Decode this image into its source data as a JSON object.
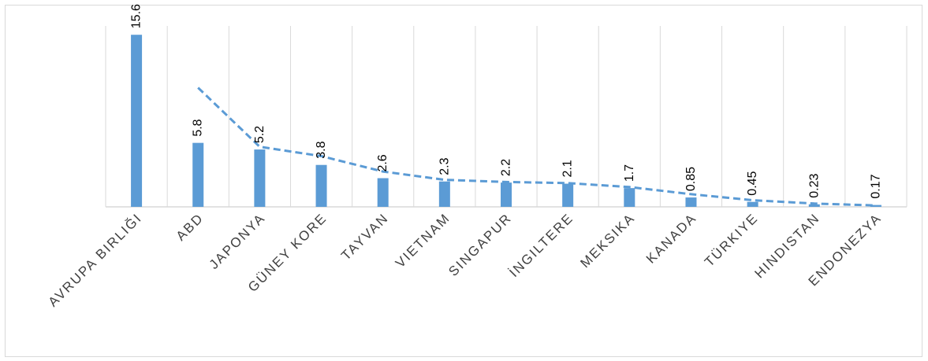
{
  "chart_data": {
    "type": "bar",
    "categories": [
      "AVRUPA BIRLIĞI",
      "ABD",
      "JAPONYA",
      "GÜNEY KORE",
      "TAYVAN",
      "VIETNAM",
      "SINGAPUR",
      "İNGILTERE",
      "MEKSIKA",
      "KANADA",
      "TÜRKIYE",
      "HINDISTAN",
      "ENDONEZYA"
    ],
    "values": [
      15.6,
      5.8,
      5.2,
      3.8,
      2.6,
      2.3,
      2.2,
      2.1,
      1.7,
      0.85,
      0.45,
      0.23,
      0.17
    ],
    "data_labels": [
      "15.6",
      "5.8",
      "5.2",
      "3.8",
      "2.6",
      "2.3",
      "2.2",
      "2.1",
      "1.7",
      "0.85",
      "0.45",
      "0.23",
      "0.17"
    ],
    "trendline": {
      "type": "dashed",
      "x_start_category": "ABD",
      "values": [
        10.8,
        5.45,
        4.6,
        3.2,
        2.45,
        2.25,
        2.15,
        1.8,
        1.15,
        0.6,
        0.3,
        0.13
      ]
    },
    "ylim": [
      0,
      16.4
    ],
    "title": "",
    "xlabel": "",
    "ylabel": "",
    "grid": "vertical",
    "legend": "none",
    "colors": {
      "bar": "#5b9bd5",
      "trendline": "#5b9bd5",
      "grid": "#d9d9d9",
      "axis": "#d9d9d9"
    }
  }
}
